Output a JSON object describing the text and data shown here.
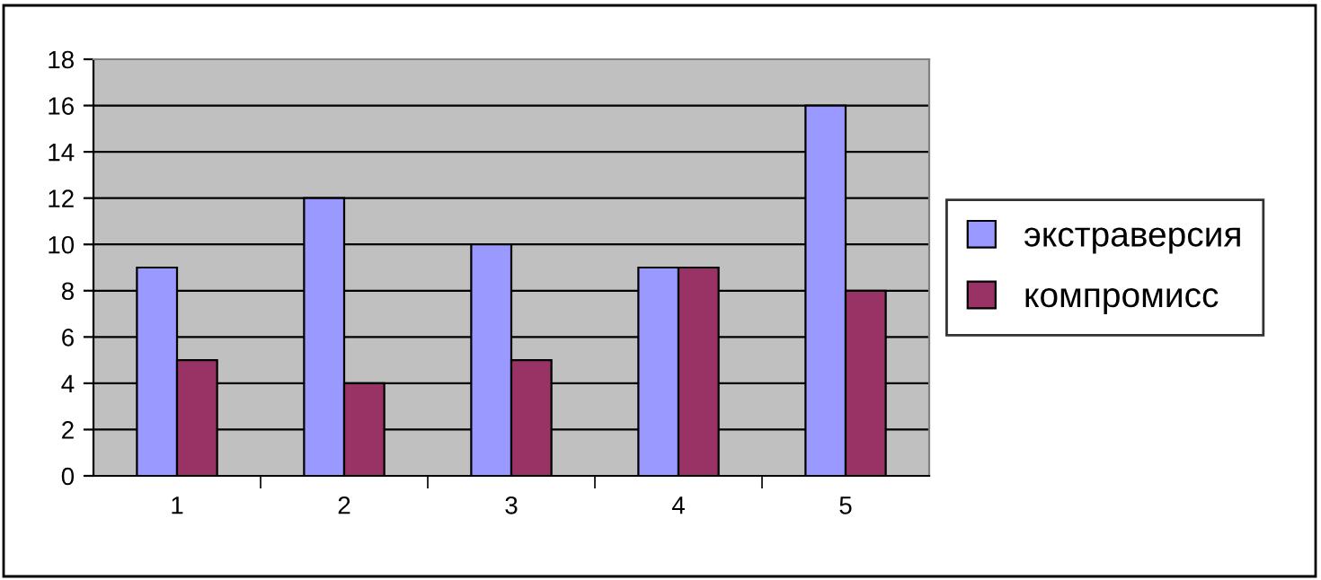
{
  "chart_data": {
    "type": "bar",
    "categories": [
      "1",
      "2",
      "3",
      "4",
      "5"
    ],
    "series": [
      {
        "name": "экстраверсия",
        "color": "#9999ff",
        "values": [
          9,
          12,
          10,
          9,
          16
        ]
      },
      {
        "name": "компромисс",
        "color": "#993366",
        "values": [
          5,
          4,
          5,
          9,
          8
        ]
      }
    ],
    "ylim": [
      0,
      18
    ],
    "yticks": [
      0,
      2,
      4,
      6,
      8,
      10,
      12,
      14,
      16,
      18
    ],
    "grid": "y",
    "legend": "right"
  }
}
